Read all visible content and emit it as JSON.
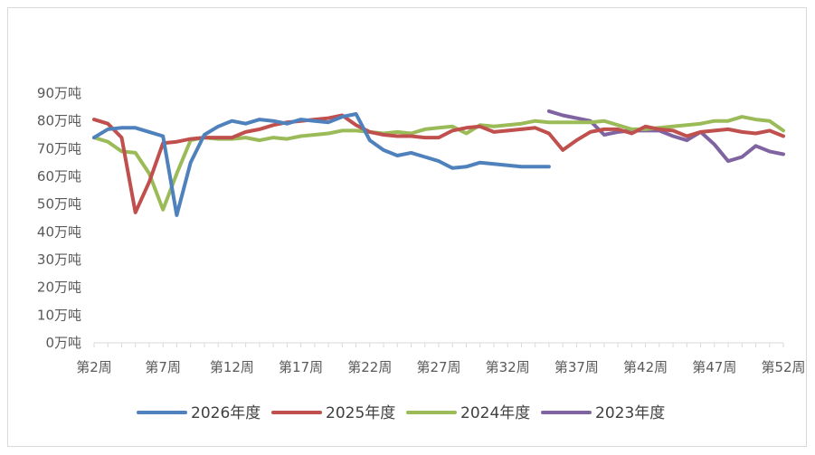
{
  "chart_data": {
    "type": "line",
    "title": "",
    "xlabel": "",
    "ylabel": "",
    "ylim": [
      0,
      90
    ],
    "y_ticks": [
      "0万吨",
      "10万吨",
      "20万吨",
      "30万吨",
      "40万吨",
      "50万吨",
      "60万吨",
      "70万吨",
      "80万吨",
      "90万吨"
    ],
    "y_tick_values": [
      0,
      10,
      20,
      30,
      40,
      50,
      60,
      70,
      80,
      90
    ],
    "x_range": [
      2,
      52
    ],
    "x_ticks": [
      "第2周",
      "第7周",
      "第12周",
      "第17周",
      "第22周",
      "第27周",
      "第32周",
      "第37周",
      "第42周",
      "第47周",
      "第52周"
    ],
    "x_tick_values": [
      2,
      7,
      12,
      17,
      22,
      27,
      32,
      37,
      42,
      47,
      52
    ],
    "grid": false,
    "legend_position": "bottom",
    "series": [
      {
        "name": "2026年度",
        "color": "#4f81bd",
        "x": [
          2,
          3,
          4,
          5,
          6,
          7,
          8,
          9,
          10,
          11,
          12,
          13,
          14,
          15,
          16,
          17,
          18,
          19,
          20,
          21,
          22,
          23,
          24,
          25,
          26,
          27,
          28,
          29,
          30,
          31,
          32,
          33,
          34,
          35
        ],
        "values": [
          74,
          77,
          77.5,
          77.5,
          76,
          74.5,
          46,
          65,
          75,
          78,
          80,
          79,
          80.5,
          80,
          79,
          80.5,
          80,
          79.5,
          81.5,
          82.5,
          73,
          69.5,
          67.5,
          68.5,
          67,
          65.5,
          63,
          63.5,
          65,
          64.5,
          64,
          63.5,
          63.5,
          63.5
        ]
      },
      {
        "name": "2025年度",
        "color": "#c0504d",
        "x": [
          2,
          3,
          4,
          5,
          6,
          7,
          8,
          9,
          10,
          11,
          12,
          13,
          14,
          15,
          16,
          17,
          18,
          19,
          20,
          21,
          22,
          23,
          24,
          25,
          26,
          27,
          28,
          29,
          30,
          31,
          32,
          33,
          34,
          35,
          36,
          37,
          38,
          39,
          40,
          41,
          42,
          43,
          44,
          45,
          46,
          47,
          48,
          49,
          50,
          51,
          52
        ],
        "values": [
          80.5,
          79,
          74,
          47,
          58,
          72,
          72.5,
          73.5,
          74,
          74,
          74,
          76,
          77,
          78.5,
          79.5,
          80,
          80.5,
          81,
          82,
          78.5,
          76,
          75,
          74.5,
          74.5,
          74,
          74,
          76.5,
          77.5,
          78,
          76,
          76.5,
          77,
          77.5,
          75.5,
          69.5,
          73,
          76,
          77,
          77,
          75.5,
          78,
          77,
          76.5,
          74.5,
          76,
          76.5,
          77,
          76,
          75.5,
          76.5,
          74.5
        ]
      },
      {
        "name": "2024年度",
        "color": "#9bbb59",
        "x": [
          2,
          3,
          4,
          5,
          6,
          7,
          8,
          9,
          10,
          11,
          12,
          13,
          14,
          15,
          16,
          17,
          18,
          19,
          20,
          21,
          22,
          23,
          24,
          25,
          26,
          27,
          28,
          29,
          30,
          31,
          32,
          33,
          34,
          35,
          36,
          37,
          38,
          39,
          40,
          41,
          42,
          43,
          44,
          45,
          46,
          47,
          48,
          49,
          50,
          51,
          52
        ],
        "values": [
          74,
          72.5,
          69,
          68.5,
          61,
          48,
          61,
          73,
          74,
          73.5,
          73.5,
          74,
          73,
          74,
          73.5,
          74.5,
          75,
          75.5,
          76.5,
          76.5,
          76,
          75.5,
          76,
          75.5,
          77,
          77.5,
          78,
          75.5,
          78.5,
          78,
          78.5,
          79,
          80,
          79.5,
          79.5,
          79.5,
          79.5,
          80,
          78.5,
          77,
          77,
          77.5,
          78,
          78.5,
          79,
          80,
          80,
          81.5,
          80.5,
          80,
          76.5
        ]
      },
      {
        "name": "2023年度",
        "color": "#8064a2",
        "x": [
          35,
          36,
          37,
          38,
          39,
          40,
          41,
          42,
          43,
          44,
          45,
          46,
          47,
          48,
          49,
          50,
          51,
          52
        ],
        "values": [
          83.5,
          82,
          81,
          80,
          75,
          76,
          76.5,
          76.5,
          76.5,
          74.5,
          73,
          76,
          71.5,
          65.5,
          67,
          71,
          69,
          68
        ]
      }
    ]
  }
}
